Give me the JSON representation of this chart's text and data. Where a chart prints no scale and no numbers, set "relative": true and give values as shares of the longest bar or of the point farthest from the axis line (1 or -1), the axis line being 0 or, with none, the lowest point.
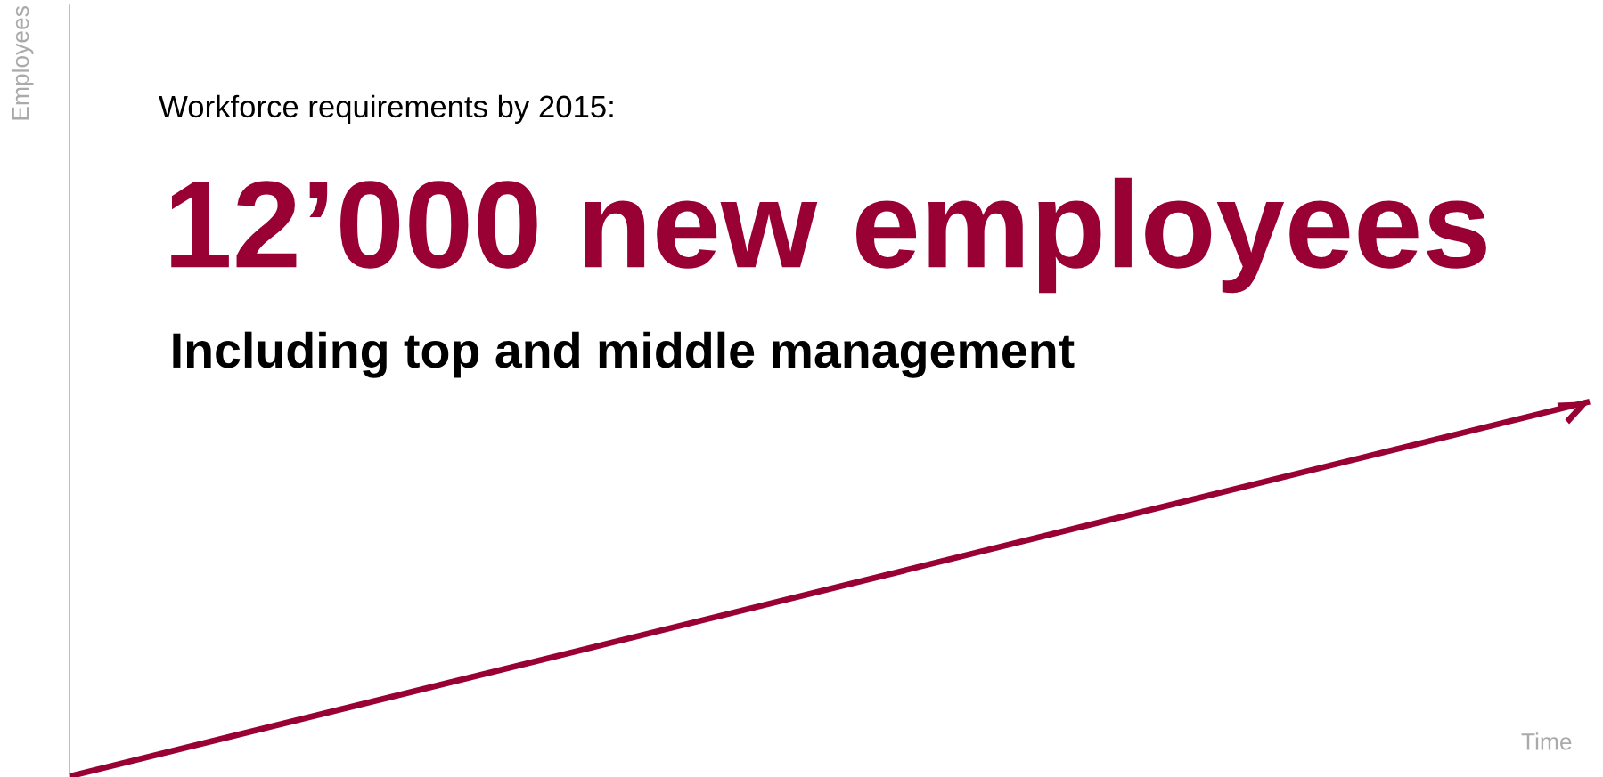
{
  "chart_data": {
    "type": "line",
    "title": "Workforce requirements by 2015:",
    "subtitle": "12’000 new employees",
    "annotations": [
      "Including top and middle management",
      "Employees"
    ],
    "xlabel": "Time",
    "relative": true,
    "categories": [
      null,
      null
    ],
    "series": [
      {
        "color": "#990033",
        "values": [
          0,
          1
        ]
      }
    ],
    "legend": false,
    "line_style": "solid",
    "marker": "none"
  }
}
